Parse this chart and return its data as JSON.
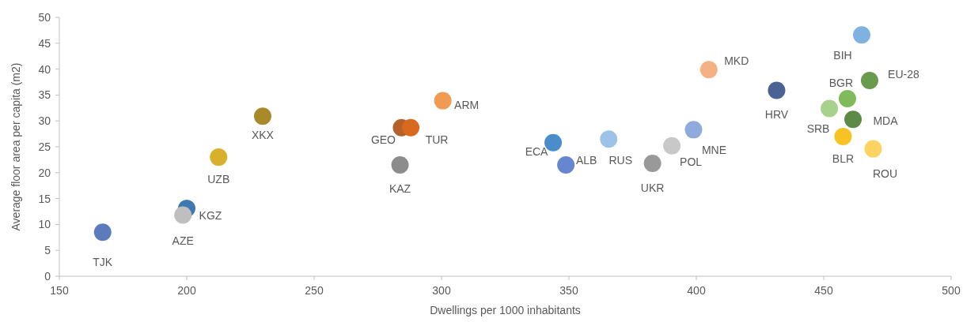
{
  "chart_data": {
    "type": "scatter",
    "xlabel": "Dwellings per 1000 inhabitants",
    "ylabel": "Average floor area per capita (m2)",
    "xlim": [
      150,
      500
    ],
    "xticks": [
      150,
      200,
      250,
      300,
      350,
      400,
      450,
      500
    ],
    "ylim": [
      0,
      50
    ],
    "yticks": [
      0,
      5,
      10,
      15,
      20,
      25,
      30,
      35,
      40,
      45,
      50
    ],
    "grid": false,
    "marker": "circle",
    "series": [
      {
        "name": "TJK",
        "color": "#5b7bbd",
        "x": [
          167
        ],
        "values": [
          8.5
        ]
      },
      {
        "name": "KGZ",
        "color": "#3f77b0",
        "x": [
          200
        ],
        "values": [
          13.1
        ]
      },
      {
        "name": "AZE",
        "color": "#bfbfbf",
        "x": [
          198.5
        ],
        "values": [
          11.8
        ]
      },
      {
        "name": "UZB",
        "color": "#d9b02c",
        "x": [
          212.5
        ],
        "values": [
          23
        ]
      },
      {
        "name": "XKX",
        "color": "#a88a2a",
        "x": [
          229.8
        ],
        "values": [
          30.9
        ]
      },
      {
        "name": "GEO",
        "color": "#b5612b",
        "x": [
          284.3
        ],
        "values": [
          28.7
        ]
      },
      {
        "name": "TUR",
        "color": "#d9691f",
        "x": [
          287.9
        ],
        "values": [
          28.7
        ]
      },
      {
        "name": "KAZ",
        "color": "#8c8c8c",
        "x": [
          283.7
        ],
        "values": [
          21.5
        ]
      },
      {
        "name": "ARM",
        "color": "#f19a52",
        "x": [
          300.5
        ],
        "values": [
          33.9
        ]
      },
      {
        "name": "ECA",
        "color": "#4b8ccb",
        "x": [
          343.8
        ],
        "values": [
          25.8
        ]
      },
      {
        "name": "ALB",
        "color": "#6686d0",
        "x": [
          348.8
        ],
        "values": [
          21.5
        ]
      },
      {
        "name": "RUS",
        "color": "#9dc3e6",
        "x": [
          365.6
        ],
        "values": [
          26.5
        ]
      },
      {
        "name": "UKR",
        "color": "#999999",
        "x": [
          382.8
        ],
        "values": [
          21.8
        ]
      },
      {
        "name": "POL",
        "color": "#c8c8c8",
        "x": [
          390.4
        ],
        "values": [
          25.2
        ]
      },
      {
        "name": "MNE",
        "color": "#8faadc",
        "x": [
          398.9
        ],
        "values": [
          28.3
        ]
      },
      {
        "name": "MKD",
        "color": "#f4b183",
        "x": [
          404.9
        ],
        "values": [
          39.9
        ]
      },
      {
        "name": "HRV",
        "color": "#4a6394",
        "x": [
          431.5
        ],
        "values": [
          35.9
        ]
      },
      {
        "name": "BIH",
        "color": "#7fb2e0",
        "x": [
          464.9
        ],
        "values": [
          46.6
        ]
      },
      {
        "name": "EU-28",
        "color": "#6a9a4e",
        "x": [
          468
        ],
        "values": [
          37.8
        ]
      },
      {
        "name": "BGR",
        "color": "#7fbb5c",
        "x": [
          459.3
        ],
        "values": [
          34.3
        ]
      },
      {
        "name": "SRB",
        "color": "#a9d18e",
        "x": [
          452.2
        ],
        "values": [
          32.4
        ]
      },
      {
        "name": "MDA",
        "color": "#5e8a48",
        "x": [
          461.5
        ],
        "values": [
          30.3
        ]
      },
      {
        "name": "BLR",
        "color": "#f7c324",
        "x": [
          457.6
        ],
        "values": [
          27
        ]
      },
      {
        "name": "ROU",
        "color": "#fdd462",
        "x": [
          469.4
        ],
        "values": [
          24.6
        ]
      }
    ]
  }
}
